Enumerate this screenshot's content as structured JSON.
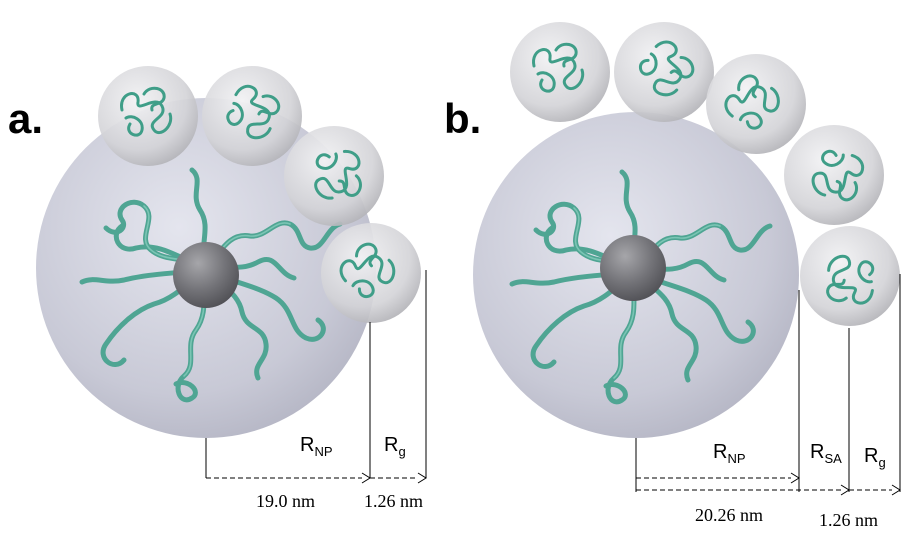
{
  "panels": [
    {
      "label": "a.",
      "r_np": {
        "main": "R",
        "sub": "NP"
      },
      "r_g": {
        "main": "R",
        "sub": "g"
      },
      "r_np_value": "19.0 nm",
      "r_g_value": "1.26 nm"
    },
    {
      "label": "b.",
      "r_np": {
        "main": "R",
        "sub": "NP"
      },
      "r_sa": {
        "main": "R",
        "sub": "SA"
      },
      "r_g": {
        "main": "R",
        "sub": "g"
      },
      "r_np_sa_value": "20.26 nm",
      "r_g_value": "1.26 nm"
    }
  ],
  "colors": {
    "polymer_chain": "#4fa593",
    "corona_sphere": "#c8c9d6",
    "core_sphere": "#6e6e72",
    "small_sphere": "#d4d4d8"
  }
}
